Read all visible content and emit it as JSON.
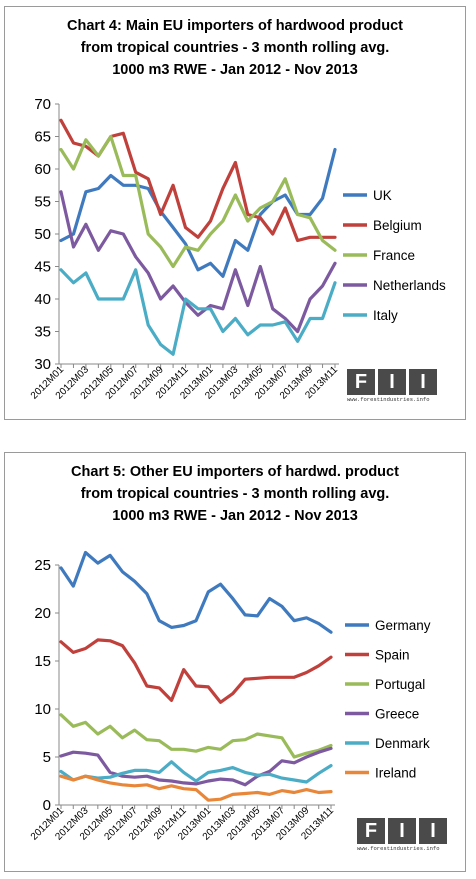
{
  "logo": {
    "letters": [
      "F",
      "I",
      "I"
    ],
    "url": "www.forestindustries.info"
  },
  "chart_data": [
    {
      "type": "line",
      "title_lines": [
        "Chart 4: Main EU importers of hardwood product",
        "from tropical countries -  3 month rolling  avg.",
        "1000 m3 RWE  - Jan 2012 - Nov 2013"
      ],
      "x": [
        "2012M01",
        "2012M02",
        "2012M03",
        "2012M04",
        "2012M05",
        "2012M06",
        "2012M07",
        "2012M08",
        "2012M09",
        "2012M10",
        "2012M11",
        "2012M12",
        "2013M01",
        "2013M02",
        "2013M03",
        "2013M04",
        "2013M05",
        "2013M06",
        "2013M07",
        "2013M08",
        "2013M09",
        "2013M10",
        "2013M11"
      ],
      "x_tick_labels": [
        "2012M01",
        "2012M03",
        "2012M05",
        "2012M07",
        "2012M09",
        "2012M11",
        "2013M01",
        "2013M03",
        "2013M05",
        "2013M07",
        "2013M09",
        "2013M11"
      ],
      "ylim": [
        30,
        70
      ],
      "yticks": [
        30,
        35,
        40,
        45,
        50,
        55,
        60,
        65,
        70
      ],
      "grid": false,
      "legend": "right",
      "series": [
        {
          "name": "UK",
          "color": "#3f7abf",
          "values": [
            49,
            50,
            56.5,
            57,
            59,
            57.5,
            57.5,
            57,
            53.5,
            51,
            48.5,
            44.5,
            45.5,
            43.5,
            49,
            47.5,
            53,
            55,
            56,
            53,
            53,
            55.5,
            63
          ]
        },
        {
          "name": "Belgium",
          "color": "#c0403c",
          "values": [
            67.5,
            64,
            63.5,
            62,
            65,
            65.5,
            59.5,
            58.5,
            53,
            57.5,
            51,
            49.5,
            52,
            57,
            61,
            53,
            52.5,
            50,
            54,
            49,
            49.5,
            49.5,
            49.5
          ]
        },
        {
          "name": "France",
          "color": "#9abb59",
          "values": [
            63,
            60,
            64.5,
            62,
            65,
            59,
            59,
            50,
            48,
            45,
            48,
            47.5,
            50,
            52,
            56,
            52,
            54,
            55,
            58.5,
            53,
            52.5,
            49,
            47.5
          ]
        },
        {
          "name": "Netherlands",
          "color": "#7d5aa0",
          "values": [
            56.5,
            48,
            51.5,
            47.5,
            50.5,
            50,
            46.5,
            44,
            40,
            42,
            39.5,
            37.5,
            39,
            38.5,
            44.5,
            39,
            45,
            38.5,
            37,
            35,
            40,
            42,
            45.5
          ]
        },
        {
          "name": "Italy",
          "color": "#4bacc6",
          "values": [
            44.5,
            42.5,
            44,
            40,
            40,
            40,
            44.5,
            36,
            33,
            31.5,
            40,
            38.5,
            38.5,
            35,
            37,
            34.5,
            36,
            36,
            36.5,
            33.5,
            37,
            37,
            42.5
          ]
        }
      ]
    },
    {
      "type": "line",
      "title_lines": [
        "Chart 5: Other EU importers of hardwd. product",
        "from tropical countries -  3 month rolling  avg.",
        "1000 m3 RWE  - Jan 2012 - Nov 2013"
      ],
      "x": [
        "2012M01",
        "2012M02",
        "2012M03",
        "2012M04",
        "2012M05",
        "2012M06",
        "2012M07",
        "2012M08",
        "2012M09",
        "2012M10",
        "2012M11",
        "2012M12",
        "2013M01",
        "2013M02",
        "2013M03",
        "2013M04",
        "2013M05",
        "2013M06",
        "2013M07",
        "2013M08",
        "2013M09",
        "2013M10",
        "2013M11"
      ],
      "x_tick_labels": [
        "2012M01",
        "2012M03",
        "2012M05",
        "2012M07",
        "2012M09",
        "2012M11",
        "2013M01",
        "2013M03",
        "2013M05",
        "2013M07",
        "2013M09",
        "2013M11"
      ],
      "ylim": [
        0,
        25
      ],
      "yticks": [
        0,
        5,
        10,
        15,
        20,
        25
      ],
      "grid": false,
      "legend": "right",
      "series": [
        {
          "name": "Germany",
          "color": "#3f7abf",
          "values": [
            24.7,
            22.8,
            26.3,
            25.2,
            26,
            24.3,
            23.3,
            22,
            19.2,
            18.5,
            18.7,
            19.2,
            22.2,
            23,
            21.5,
            19.8,
            19.7,
            21.5,
            20.7,
            19.2,
            19.5,
            18.9,
            18
          ]
        },
        {
          "name": "Spain",
          "color": "#c0403c",
          "values": [
            17,
            15.9,
            16.3,
            17.2,
            17.1,
            16.6,
            14.8,
            12.4,
            12.2,
            10.9,
            14.1,
            12.4,
            12.3,
            10.7,
            11.6,
            13.1,
            13.2,
            13.3,
            13.3,
            13.3,
            13.8,
            14.5,
            15.4
          ]
        },
        {
          "name": "Portugal",
          "color": "#9abb59",
          "values": [
            9.4,
            8.2,
            8.6,
            7.4,
            8.2,
            7,
            7.8,
            6.8,
            6.7,
            5.8,
            5.8,
            5.6,
            6,
            5.8,
            6.7,
            6.8,
            7.4,
            7.2,
            7,
            5,
            5.4,
            5.7,
            6.2
          ]
        },
        {
          "name": "Greece",
          "color": "#7d5aa0",
          "values": [
            5.1,
            5.5,
            5.4,
            5.2,
            3.4,
            3,
            2.9,
            3,
            2.6,
            2.5,
            2.3,
            2.2,
            2.5,
            2.7,
            2.6,
            2.1,
            3,
            3.5,
            4.6,
            4.4,
            5,
            5.5,
            5.9
          ]
        },
        {
          "name": "Denmark",
          "color": "#4bacc6",
          "values": [
            3.5,
            2.6,
            3,
            2.8,
            2.9,
            3.3,
            3.6,
            3.6,
            3.4,
            4.5,
            3.4,
            2.5,
            3.4,
            3.6,
            3.9,
            3.4,
            3.1,
            3.2,
            2.8,
            2.6,
            2.4,
            3.3,
            4.1
          ]
        },
        {
          "name": "Ireland",
          "color": "#e8873a",
          "values": [
            3,
            2.6,
            3,
            2.6,
            2.3,
            2.1,
            2,
            2.1,
            1.7,
            2,
            1.7,
            1.6,
            0.5,
            0.6,
            1.1,
            1.2,
            1.3,
            1.1,
            1.5,
            1.3,
            1.6,
            1.3,
            1.4
          ]
        }
      ]
    }
  ]
}
